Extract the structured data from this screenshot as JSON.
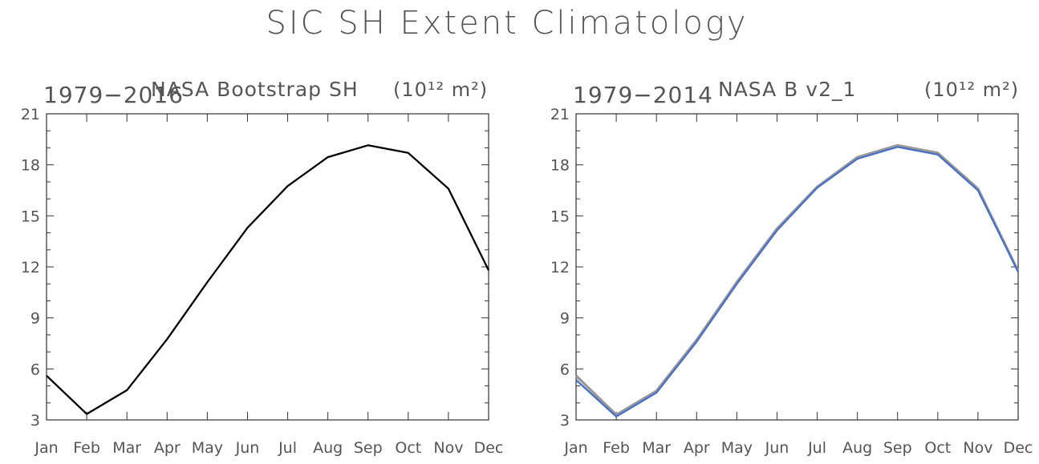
{
  "figure": {
    "title": "SIC SH Extent Climatology"
  },
  "chart_data": [
    {
      "type": "line",
      "left_title": "1979-2016",
      "center_title": "NASA Bootstrap SH",
      "units_label": "(10¹² m²)",
      "xlabel": "",
      "ylabel": "",
      "categories": [
        "Jan",
        "Feb",
        "Mar",
        "Apr",
        "May",
        "Jun",
        "Jul",
        "Aug",
        "Sep",
        "Oct",
        "Nov",
        "Dec"
      ],
      "ylim": [
        3,
        21
      ],
      "yticks": [
        "3",
        "6",
        "9",
        "12",
        "15",
        "18",
        "21"
      ],
      "grid": false,
      "series": [
        {
          "color": "#000000",
          "values": [
            5.6,
            3.35,
            4.75,
            7.75,
            11.1,
            14.3,
            16.75,
            18.45,
            19.15,
            18.7,
            16.6,
            11.8
          ]
        }
      ]
    },
    {
      "type": "line",
      "left_title": "1979-2014",
      "center_title": "NASA B v2_1",
      "units_label": "(10¹² m²)",
      "xlabel": "",
      "ylabel": "",
      "categories": [
        "Jan",
        "Feb",
        "Mar",
        "Apr",
        "May",
        "Jun",
        "Jul",
        "Aug",
        "Sep",
        "Oct",
        "Nov",
        "Dec"
      ],
      "ylim": [
        3,
        21
      ],
      "yticks": [
        "3",
        "6",
        "9",
        "12",
        "15",
        "18",
        "21"
      ],
      "grid": false,
      "series": [
        {
          "color": "#999999",
          "values": [
            5.6,
            3.3,
            4.7,
            7.7,
            11.1,
            14.25,
            16.7,
            18.45,
            19.15,
            18.7,
            16.6,
            11.75
          ]
        },
        {
          "color": "#4a6fc8",
          "values": [
            5.35,
            3.2,
            4.6,
            7.6,
            11.0,
            14.15,
            16.65,
            18.35,
            19.05,
            18.6,
            16.5,
            11.7
          ]
        }
      ]
    }
  ]
}
